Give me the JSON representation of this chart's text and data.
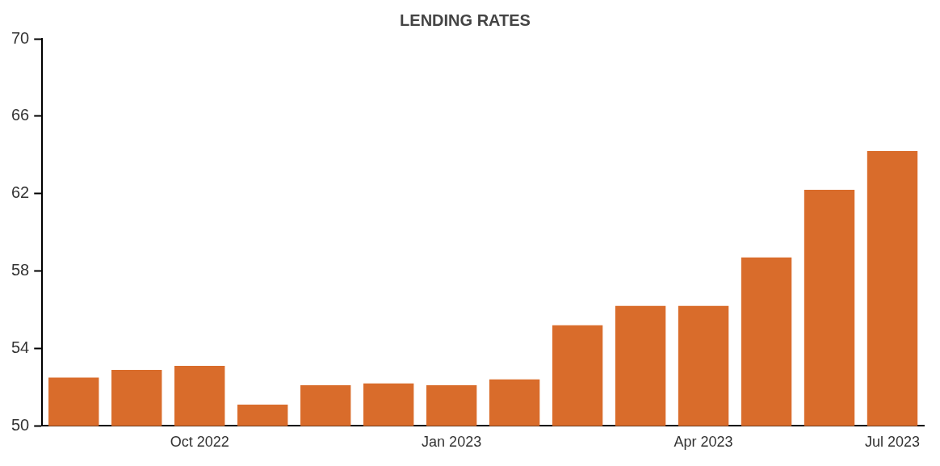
{
  "chart_data": {
    "type": "bar",
    "title": "LENDING RATES",
    "categories": [
      null,
      null,
      "Oct 2022",
      null,
      null,
      null,
      "Jan 2023",
      null,
      null,
      null,
      "Apr 2023",
      null,
      null,
      "Jul 2023"
    ],
    "values": [
      52.5,
      52.9,
      53.1,
      51.1,
      52.1,
      52.2,
      52.1,
      52.4,
      55.2,
      56.2,
      56.2,
      58.7,
      62.2,
      64.2
    ],
    "color": "#d96c2b",
    "ylim": [
      50,
      70
    ],
    "yticks": [
      50,
      54,
      58,
      62,
      66,
      70
    ],
    "grid": false,
    "legend": false
  }
}
